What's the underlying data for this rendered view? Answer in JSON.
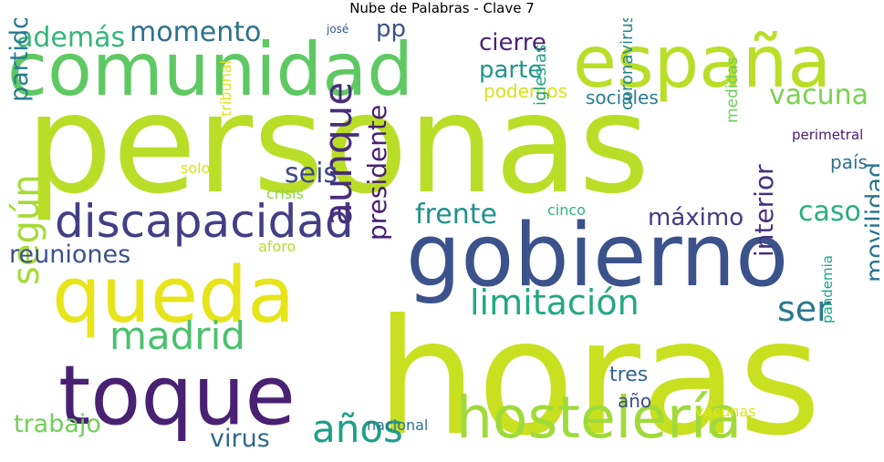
{
  "chart_data": {
    "type": "wordcloud",
    "title": "Nube de Palabras - Clave 7",
    "words": [
      {
        "text": "personas",
        "color": "#bade28"
      },
      {
        "text": "horas",
        "color": "#c8e020"
      },
      {
        "text": "gobierno",
        "color": "#3b528b"
      },
      {
        "text": "comunidad",
        "color": "#5ec962"
      },
      {
        "text": "españa",
        "color": "#bade28"
      },
      {
        "text": "queda",
        "color": "#e7e419"
      },
      {
        "text": "toque",
        "color": "#482173"
      },
      {
        "text": "hostelería",
        "color": "#a0da39"
      },
      {
        "text": "discapacidad",
        "color": "#433e85"
      },
      {
        "text": "madrid",
        "color": "#4ac16d"
      },
      {
        "text": "limitación",
        "color": "#22a884"
      },
      {
        "text": "aunque",
        "color": "#472d7b"
      },
      {
        "text": "años",
        "color": "#1f9e89"
      },
      {
        "text": "ser",
        "color": "#2a788e"
      },
      {
        "text": "según",
        "color": "#a5db36"
      },
      {
        "text": "además",
        "color": "#35b779"
      },
      {
        "text": "momento",
        "color": "#2c728e"
      },
      {
        "text": "reuniones",
        "color": "#3b528b"
      },
      {
        "text": "seis",
        "color": "#3e4989"
      },
      {
        "text": "frente",
        "color": "#21918c"
      },
      {
        "text": "vacuna",
        "color": "#7ad151"
      },
      {
        "text": "caso",
        "color": "#29af7f"
      },
      {
        "text": "partido",
        "color": "#287c8e"
      },
      {
        "text": "trabajo",
        "color": "#70cf57"
      },
      {
        "text": "presidente",
        "color": "#481f70"
      },
      {
        "text": "interior",
        "color": "#46307e"
      },
      {
        "text": "movilidad",
        "color": "#2a768e"
      },
      {
        "text": "virus",
        "color": "#31688e"
      },
      {
        "text": "máximo",
        "color": "#443a83"
      },
      {
        "text": "cierre",
        "color": "#482475"
      },
      {
        "text": "parte",
        "color": "#1f968b"
      },
      {
        "text": "pp",
        "color": "#3b528b"
      },
      {
        "text": "podemos",
        "color": "#d8e219"
      },
      {
        "text": "sociales",
        "color": "#287d8e"
      },
      {
        "text": "tres",
        "color": "#33638d"
      },
      {
        "text": "año",
        "color": "#3e4a89"
      },
      {
        "text": "país",
        "color": "#2d708e"
      },
      {
        "text": "iglesias",
        "color": "#20a386"
      },
      {
        "text": "coronavirus",
        "color": "#25858e"
      },
      {
        "text": "medidas",
        "color": "#6ece58"
      },
      {
        "text": "tribunal",
        "color": "#e2e418"
      },
      {
        "text": "solo",
        "color": "#dde318"
      },
      {
        "text": "crisis",
        "color": "#8bd646"
      },
      {
        "text": "cinco",
        "color": "#31b57b"
      },
      {
        "text": "aforo",
        "color": "#b5de2b"
      },
      {
        "text": "perimetral",
        "color": "#481b6d"
      },
      {
        "text": "pandemia",
        "color": "#21a685"
      },
      {
        "text": "nacional",
        "color": "#2c738e"
      },
      {
        "text": "vacunas",
        "color": "#e5e419"
      },
      {
        "text": "josé",
        "color": "#38598c"
      }
    ]
  }
}
